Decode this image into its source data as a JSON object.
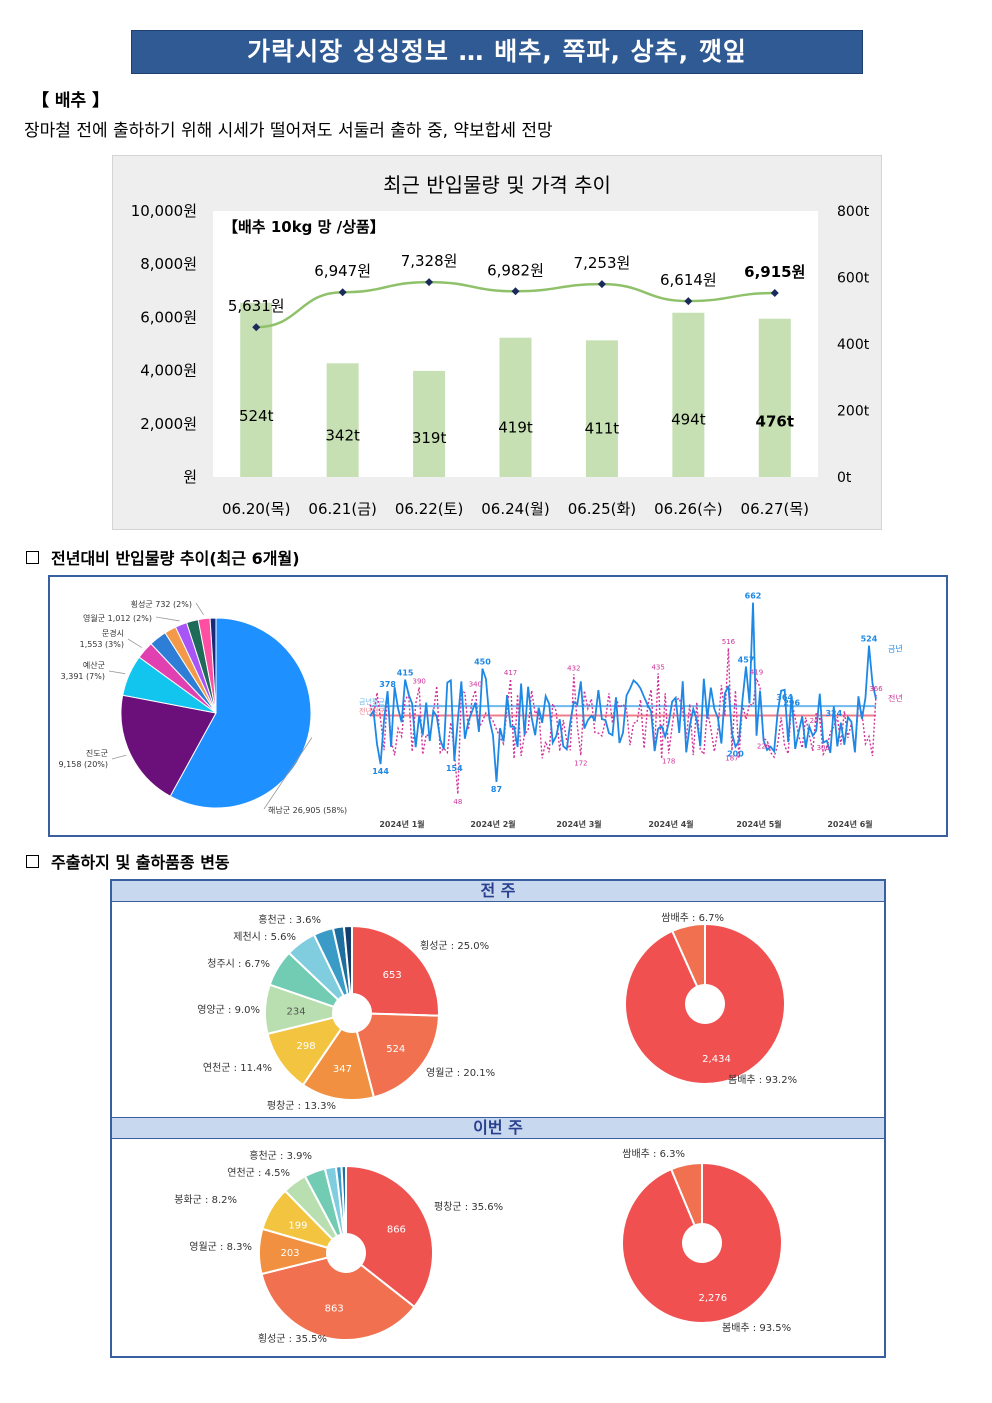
{
  "title": "가락시장 싱싱정보 … 배추, 쪽파, 상추, 깻잎",
  "section": {
    "label": "【 배추 】",
    "summary": "장마철 전에 출하하기 위해 시세가 떨어져도 서둘러 출하 중, 약보합세 전망"
  },
  "chart_data": [
    {
      "type": "bar+line",
      "title": "최근 반입물량 및 가격 추이",
      "annotation": "【배추 10kg 망 /상품】",
      "categories": [
        "06.20(목)",
        "06.21(금)",
        "06.22(토)",
        "06.24(월)",
        "06.25(화)",
        "06.26(수)",
        "06.27(목)"
      ],
      "series": [
        {
          "values": [
            524,
            342,
            319,
            419,
            411,
            494,
            476
          ],
          "labels": [
            "524t",
            "342t",
            "319t",
            "419t",
            "411t",
            "494t",
            "476t"
          ],
          "axis": "right",
          "color": "#c6e0b4"
        },
        {
          "values": [
            5631,
            6947,
            7328,
            6982,
            7253,
            6614,
            6915
          ],
          "labels": [
            "5,631원",
            "6,947원",
            "7,328원",
            "6,982원",
            "7,253원",
            "6,614원",
            "6,915원"
          ],
          "axis": "left",
          "color": "#8fc16a"
        }
      ],
      "y_left": {
        "range": [
          0,
          10000
        ],
        "ticks": [
          "원",
          "2,000원",
          "4,000원",
          "6,000원",
          "8,000원",
          "10,000원"
        ]
      },
      "y_right": {
        "range": [
          0,
          800
        ],
        "ticks": [
          "0t",
          "200t",
          "400t",
          "600t",
          "800t"
        ]
      }
    },
    {
      "type": "pie",
      "slices": [
        {
          "label": "해남군 26,905 (58%)",
          "value": 58,
          "color": "#1e90ff"
        },
        {
          "label": "진도군 9,158 (20%)",
          "value": 20,
          "color": "#6b0f7a"
        },
        {
          "label": "예산군 3,391 (7%)",
          "value": 7,
          "color": "#12c5ee"
        },
        {
          "label": "문경시 1,553 (3%)",
          "value": 3,
          "color": "#e040b0"
        },
        {
          "label": "",
          "value": 3,
          "color": "#2e7dd6"
        },
        {
          "label": "",
          "value": 2,
          "color": "#f29a4a"
        },
        {
          "label": "영월군 1,012 (2%)",
          "value": 2,
          "color": "#a855f7"
        },
        {
          "label": "",
          "value": 2,
          "color": "#1f6b5a"
        },
        {
          "label": "횡성군 732 (2%)",
          "value": 2,
          "color": "#ff4fa3"
        },
        {
          "label": "",
          "value": 1,
          "color": "#1a2a7a"
        }
      ]
    },
    {
      "type": "line",
      "x_ticks": [
        "2024년 1월",
        "2024년 2월",
        "2024년 3월",
        "2024년 4월",
        "2024년 5월",
        "2024년 6월"
      ],
      "series": [
        {
          "name": "금년",
          "color": "#1e88e5",
          "annotations": [
            "378",
            "415",
            "450",
            "662",
            "457",
            "524",
            "154",
            "144",
            "87",
            "200",
            "296",
            "364",
            "324"
          ]
        },
        {
          "name": "전년",
          "color": "#d0339a",
          "annotations": [
            "390",
            "417",
            "432",
            "435",
            "516",
            "419",
            "366",
            "340",
            "48",
            "172",
            "178",
            "187",
            "226",
            "245",
            "300"
          ]
        }
      ],
      "avg_lines": [
        {
          "name": "금년평균",
          "color": "#6fb8ee"
        },
        {
          "name": "전년평균",
          "color": "#f07c8a"
        }
      ]
    },
    {
      "type": "pie",
      "group": "전 주",
      "slices": [
        {
          "label": "횡성군 : 25.0%",
          "value": 653,
          "color": "#ef5350"
        },
        {
          "label": "영월군 : 20.1%",
          "value": 524,
          "color": "#f07050"
        },
        {
          "label": "평창군 : 13.3%",
          "value": 347,
          "color": "#f09040"
        },
        {
          "label": "연천군 : 11.4%",
          "value": 298,
          "color": "#f2c440"
        },
        {
          "label": "영양군 : 9.0%",
          "value": 234,
          "color": "#b9dfb0"
        },
        {
          "label": "청주시 : 6.7%",
          "value": 175,
          "color": "#72cbb3"
        },
        {
          "label": "제천시 : 5.6%",
          "value": 146,
          "color": "#80cde0"
        },
        {
          "label": "홍천군 : 3.6%",
          "value": 94,
          "color": "#3a9bc6"
        },
        {
          "label": "",
          "value": 52,
          "color": "#1e6fa0"
        },
        {
          "label": "",
          "value": 38,
          "color": "#123f6e"
        }
      ],
      "value_labels": [
        "653",
        "524",
        "347",
        "298",
        "234"
      ]
    },
    {
      "type": "pie",
      "group": "전 주",
      "slices": [
        {
          "label": "봄배추 : 93.2%",
          "value": 2434,
          "color": "#f05050"
        },
        {
          "label": "쌈배추 : 6.7%",
          "value": 175,
          "color": "#f07050"
        }
      ],
      "value_labels": [
        "2,434"
      ]
    },
    {
      "type": "pie",
      "group": "이번 주",
      "slices": [
        {
          "label": "평창군 : 35.6%",
          "value": 866,
          "color": "#ef5350"
        },
        {
          "label": "횡성군 : 35.5%",
          "value": 863,
          "color": "#f07050"
        },
        {
          "label": "영월군 : 8.3%",
          "value": 203,
          "color": "#f09040"
        },
        {
          "label": "봉화군 : 8.2%",
          "value": 199,
          "color": "#f2c440"
        },
        {
          "label": "연천군 : 4.5%",
          "value": 110,
          "color": "#b9dfb0"
        },
        {
          "label": "홍천군 : 3.9%",
          "value": 95,
          "color": "#72cbb3"
        },
        {
          "label": "",
          "value": 50,
          "color": "#80cde0"
        },
        {
          "label": "",
          "value": 25,
          "color": "#3a9bc6"
        },
        {
          "label": "",
          "value": 20,
          "color": "#1e6fa0"
        }
      ],
      "value_labels": [
        "866",
        "863",
        "203",
        "199"
      ]
    },
    {
      "type": "pie",
      "group": "이번 주",
      "slices": [
        {
          "label": "봄배추 : 93.5%",
          "value": 2276,
          "color": "#f05050"
        },
        {
          "label": "쌈배추 : 6.3%",
          "value": 153,
          "color": "#f07050"
        }
      ],
      "value_labels": [
        "2,276"
      ]
    }
  ],
  "subsections": {
    "yoy": "전년대비 반입물량 추이(최근 6개월)",
    "origin": "주출하지 및 출하품종 변동"
  },
  "bands": {
    "prev_week": "전 주",
    "this_week": "이번 주"
  }
}
